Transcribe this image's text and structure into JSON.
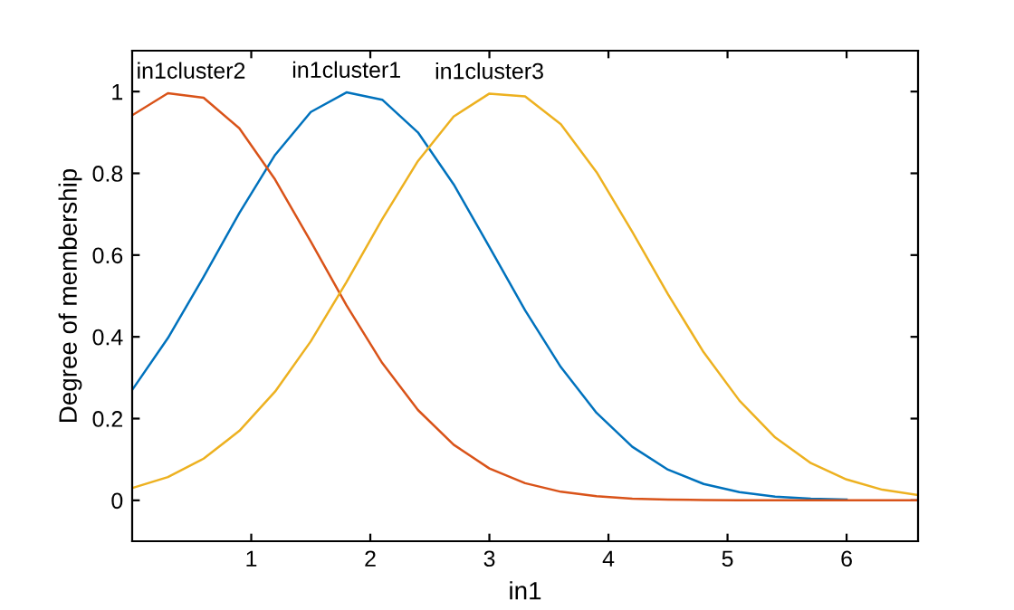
{
  "chart_data": {
    "type": "line",
    "xlabel": "in1",
    "ylabel": "Degree of membership",
    "x": [
      0,
      0.3,
      0.6,
      0.9,
      1.2,
      1.5,
      1.8,
      2.1,
      2.4,
      2.7,
      3.0,
      3.3,
      3.6,
      3.9,
      4.2,
      4.5,
      4.8,
      5.1,
      5.4,
      5.7,
      6.0,
      6.3,
      6.6
    ],
    "series": [
      {
        "name": "in1cluster1",
        "color": "#0072bd",
        "values": [
          0.27,
          0.397,
          0.547,
          0.703,
          0.845,
          0.95,
          0.998,
          0.98,
          0.9,
          0.773,
          0.62,
          0.465,
          0.326,
          0.214,
          0.131,
          0.075,
          0.04,
          0.02,
          0.009,
          0.004,
          0.002,
          null,
          null
        ]
      },
      {
        "name": "in1cluster2",
        "color": "#d95319",
        "values": [
          0.942,
          0.996,
          0.985,
          0.91,
          0.785,
          0.633,
          0.477,
          0.336,
          0.221,
          0.136,
          0.078,
          0.042,
          0.021,
          0.01,
          0.004,
          0.002,
          0.001,
          0,
          0,
          0,
          0,
          0,
          0
        ]
      },
      {
        "name": "in1cluster3",
        "color": "#edb120",
        "values": [
          0.03,
          0.057,
          0.102,
          0.17,
          0.266,
          0.389,
          0.534,
          0.688,
          0.83,
          0.939,
          0.995,
          0.988,
          0.92,
          0.803,
          0.657,
          0.504,
          0.362,
          0.244,
          0.154,
          0.091,
          0.051,
          0.026,
          0.013
        ]
      }
    ],
    "xlim": [
      0,
      6.6
    ],
    "ylim": [
      -0.1,
      1.1
    ],
    "xticks": [
      1,
      2,
      3,
      4,
      5,
      6
    ],
    "yticks": [
      0,
      {
        "value": 0.2,
        "label": "0.2"
      },
      {
        "value": 0.4,
        "label": "0.4"
      },
      {
        "value": 0.6,
        "label": "0.6"
      },
      {
        "value": 0.8,
        "label": "0.8"
      },
      1
    ],
    "grid": false,
    "legend": false,
    "marker": "none",
    "line_style": "solid"
  }
}
